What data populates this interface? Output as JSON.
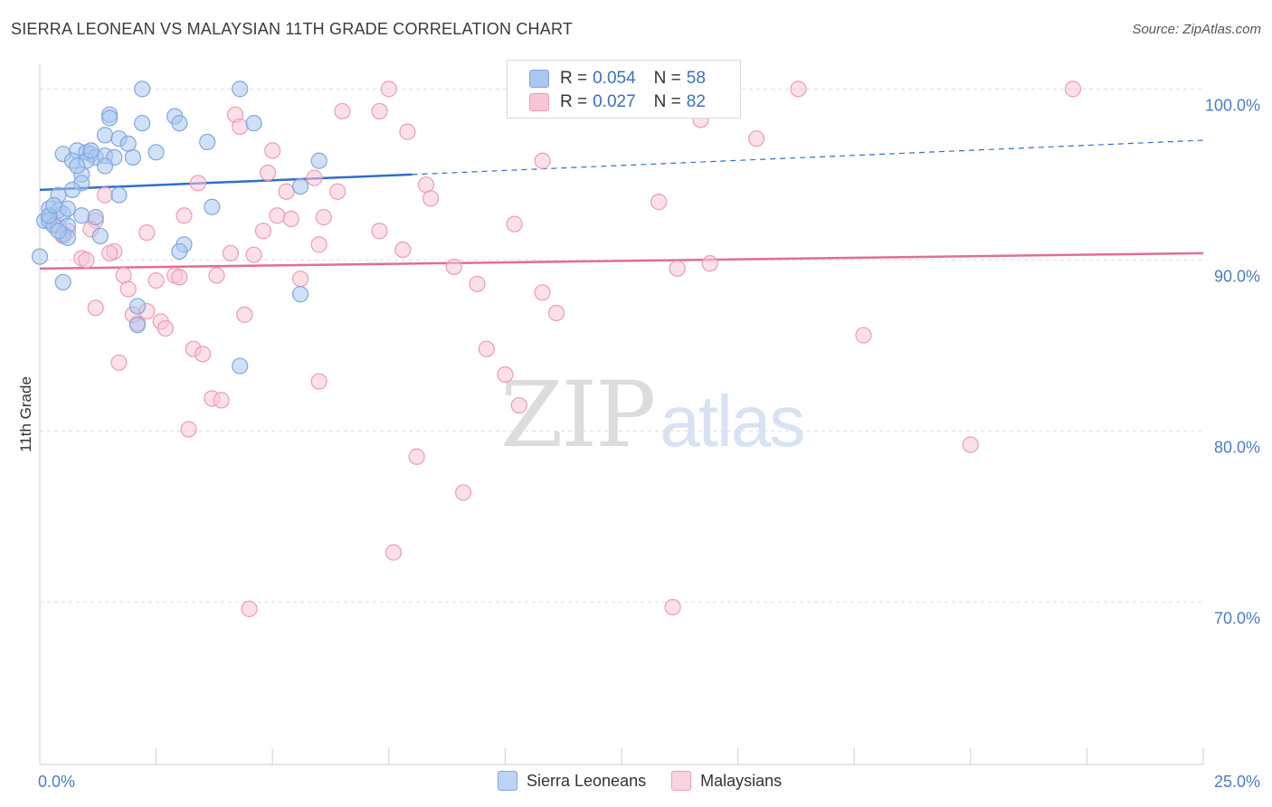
{
  "title": "SIERRA LEONEAN VS MALAYSIAN 11TH GRADE CORRELATION CHART",
  "source": "Source: ZipAtlas.com",
  "watermark": {
    "part1": "ZIP",
    "part2": "atlas"
  },
  "legend": {
    "rows": [
      {
        "r_label": "R =",
        "r_value": "0.054",
        "n_label": "N =",
        "n_value": "58",
        "color": "#a9c7ef",
        "border": "#7ea8de"
      },
      {
        "r_label": "R =",
        "r_value": "0.027",
        "n_label": "N =",
        "n_value": "82",
        "color": "#f7c6d5",
        "border": "#ee9ab6"
      }
    ]
  },
  "bottom_legend": [
    {
      "label": "Sierra Leoneans",
      "color": "#bcd4f3",
      "border": "#7ea8de"
    },
    {
      "label": "Malaysians",
      "color": "#f9d3df",
      "border": "#ee9ab6"
    }
  ],
  "chart_data": {
    "type": "scatter",
    "title": "SIERRA LEONEAN VS MALAYSIAN 11TH GRADE CORRELATION CHART",
    "xlabel": "",
    "ylabel": "11th Grade",
    "xlim": [
      0,
      25
    ],
    "ylim": [
      60.5,
      101.5
    ],
    "x_tick_labels": [
      "0.0%",
      "25.0%"
    ],
    "y_ticks": [
      100,
      90,
      80,
      70
    ],
    "y_tick_labels": [
      "100.0%",
      "90.0%",
      "80.0%",
      "70.0%"
    ],
    "grid": true,
    "series": [
      {
        "name": "Sierra Leoneans",
        "color": "#7ea8de",
        "fill": "#a9c7ef",
        "trend": {
          "x0": 0,
          "y0": 94.1,
          "x1": 8.0,
          "y1": 95.0,
          "dash_x1": 25,
          "dash_y1": 97.0,
          "color": "#2f6fcb"
        },
        "points": [
          [
            2.2,
            100
          ],
          [
            4.3,
            100
          ],
          [
            1.5,
            98.5
          ],
          [
            1.5,
            98.3
          ],
          [
            2.2,
            98.0
          ],
          [
            2.9,
            98.4
          ],
          [
            3.0,
            98.0
          ],
          [
            4.6,
            98.0
          ],
          [
            1.4,
            97.3
          ],
          [
            1.7,
            97.1
          ],
          [
            1.9,
            96.8
          ],
          [
            3.6,
            96.9
          ],
          [
            0.5,
            96.2
          ],
          [
            0.8,
            96.4
          ],
          [
            1.0,
            96.3
          ],
          [
            1.1,
            96.2
          ],
          [
            1.2,
            96.0
          ],
          [
            1.4,
            96.1
          ],
          [
            1.6,
            96.0
          ],
          [
            2.5,
            96.3
          ],
          [
            0.7,
            95.8
          ],
          [
            1.0,
            95.8
          ],
          [
            1.4,
            95.5
          ],
          [
            6.0,
            95.8
          ],
          [
            0.9,
            95.0
          ],
          [
            0.9,
            94.5
          ],
          [
            0.7,
            94.1
          ],
          [
            0.4,
            93.8
          ],
          [
            1.7,
            93.8
          ],
          [
            5.6,
            94.3
          ],
          [
            0.2,
            93.0
          ],
          [
            0.4,
            92.9
          ],
          [
            0.5,
            92.7
          ],
          [
            0.6,
            93.0
          ],
          [
            0.9,
            92.6
          ],
          [
            3.7,
            93.1
          ],
          [
            0.1,
            92.3
          ],
          [
            0.2,
            92.3
          ],
          [
            0.3,
            92.0
          ],
          [
            0.6,
            92.0
          ],
          [
            0.5,
            91.5
          ],
          [
            1.3,
            91.4
          ],
          [
            3.1,
            90.9
          ],
          [
            0.0,
            90.2
          ],
          [
            3.0,
            90.5
          ],
          [
            0.5,
            88.7
          ],
          [
            2.1,
            87.3
          ],
          [
            5.6,
            88.0
          ],
          [
            2.1,
            86.2
          ],
          [
            4.3,
            83.8
          ],
          [
            0.6,
            91.3
          ],
          [
            0.2,
            92.6
          ],
          [
            1.2,
            92.5
          ],
          [
            0.3,
            93.2
          ],
          [
            1.1,
            96.4
          ],
          [
            0.8,
            95.5
          ],
          [
            2.0,
            96.0
          ],
          [
            0.4,
            91.7
          ]
        ]
      },
      {
        "name": "Malaysians",
        "color": "#ee9ab6",
        "fill": "#f7c6d5",
        "trend": {
          "x0": 0,
          "y0": 89.5,
          "x1": 25,
          "y1": 90.4,
          "color": "#e26d95"
        },
        "points": [
          [
            7.5,
            100
          ],
          [
            11.5,
            100
          ],
          [
            16.3,
            100
          ],
          [
            22.2,
            100
          ],
          [
            6.5,
            98.7
          ],
          [
            7.3,
            98.7
          ],
          [
            4.2,
            98.5
          ],
          [
            4.3,
            97.8
          ],
          [
            7.9,
            97.5
          ],
          [
            14.2,
            98.2
          ],
          [
            15.4,
            97.1
          ],
          [
            5.0,
            96.4
          ],
          [
            10.8,
            95.8
          ],
          [
            4.9,
            95.1
          ],
          [
            5.9,
            94.8
          ],
          [
            6.4,
            94.0
          ],
          [
            3.4,
            94.5
          ],
          [
            8.3,
            94.4
          ],
          [
            1.4,
            93.8
          ],
          [
            8.4,
            93.6
          ],
          [
            13.3,
            93.4
          ],
          [
            3.1,
            92.6
          ],
          [
            5.1,
            92.6
          ],
          [
            5.4,
            92.4
          ],
          [
            6.1,
            92.5
          ],
          [
            10.2,
            92.1
          ],
          [
            1.2,
            92.3
          ],
          [
            0.3,
            92.1
          ],
          [
            0.6,
            91.7
          ],
          [
            1.1,
            91.8
          ],
          [
            2.3,
            91.6
          ],
          [
            4.8,
            91.7
          ],
          [
            7.3,
            91.7
          ],
          [
            0.5,
            91.4
          ],
          [
            1.6,
            90.5
          ],
          [
            4.1,
            90.4
          ],
          [
            4.6,
            90.3
          ],
          [
            6.0,
            90.9
          ],
          [
            7.8,
            90.6
          ],
          [
            0.9,
            90.1
          ],
          [
            1.0,
            90.0
          ],
          [
            8.9,
            89.6
          ],
          [
            13.7,
            89.5
          ],
          [
            14.4,
            89.8
          ],
          [
            1.8,
            89.1
          ],
          [
            2.5,
            88.8
          ],
          [
            2.9,
            89.1
          ],
          [
            3.0,
            89.0
          ],
          [
            3.8,
            89.1
          ],
          [
            5.6,
            88.9
          ],
          [
            9.4,
            88.6
          ],
          [
            1.9,
            88.3
          ],
          [
            10.8,
            88.1
          ],
          [
            1.2,
            87.2
          ],
          [
            2.3,
            87.0
          ],
          [
            4.4,
            86.8
          ],
          [
            11.1,
            86.9
          ],
          [
            2.1,
            86.3
          ],
          [
            2.6,
            86.4
          ],
          [
            2.7,
            86.0
          ],
          [
            3.3,
            84.8
          ],
          [
            3.5,
            84.5
          ],
          [
            9.6,
            84.8
          ],
          [
            17.7,
            85.6
          ],
          [
            1.7,
            84.0
          ],
          [
            10.0,
            83.3
          ],
          [
            6.0,
            82.9
          ],
          [
            3.7,
            81.9
          ],
          [
            3.9,
            81.8
          ],
          [
            10.3,
            81.5
          ],
          [
            3.2,
            80.1
          ],
          [
            8.1,
            78.5
          ],
          [
            20.0,
            79.2
          ],
          [
            9.1,
            76.4
          ],
          [
            7.6,
            72.9
          ],
          [
            4.5,
            69.6
          ],
          [
            13.6,
            69.7
          ],
          [
            5.3,
            94.0
          ],
          [
            1.5,
            90.4
          ],
          [
            2.0,
            86.8
          ],
          [
            0.2,
            92.5
          ],
          [
            0.4,
            92.0
          ]
        ]
      }
    ]
  }
}
